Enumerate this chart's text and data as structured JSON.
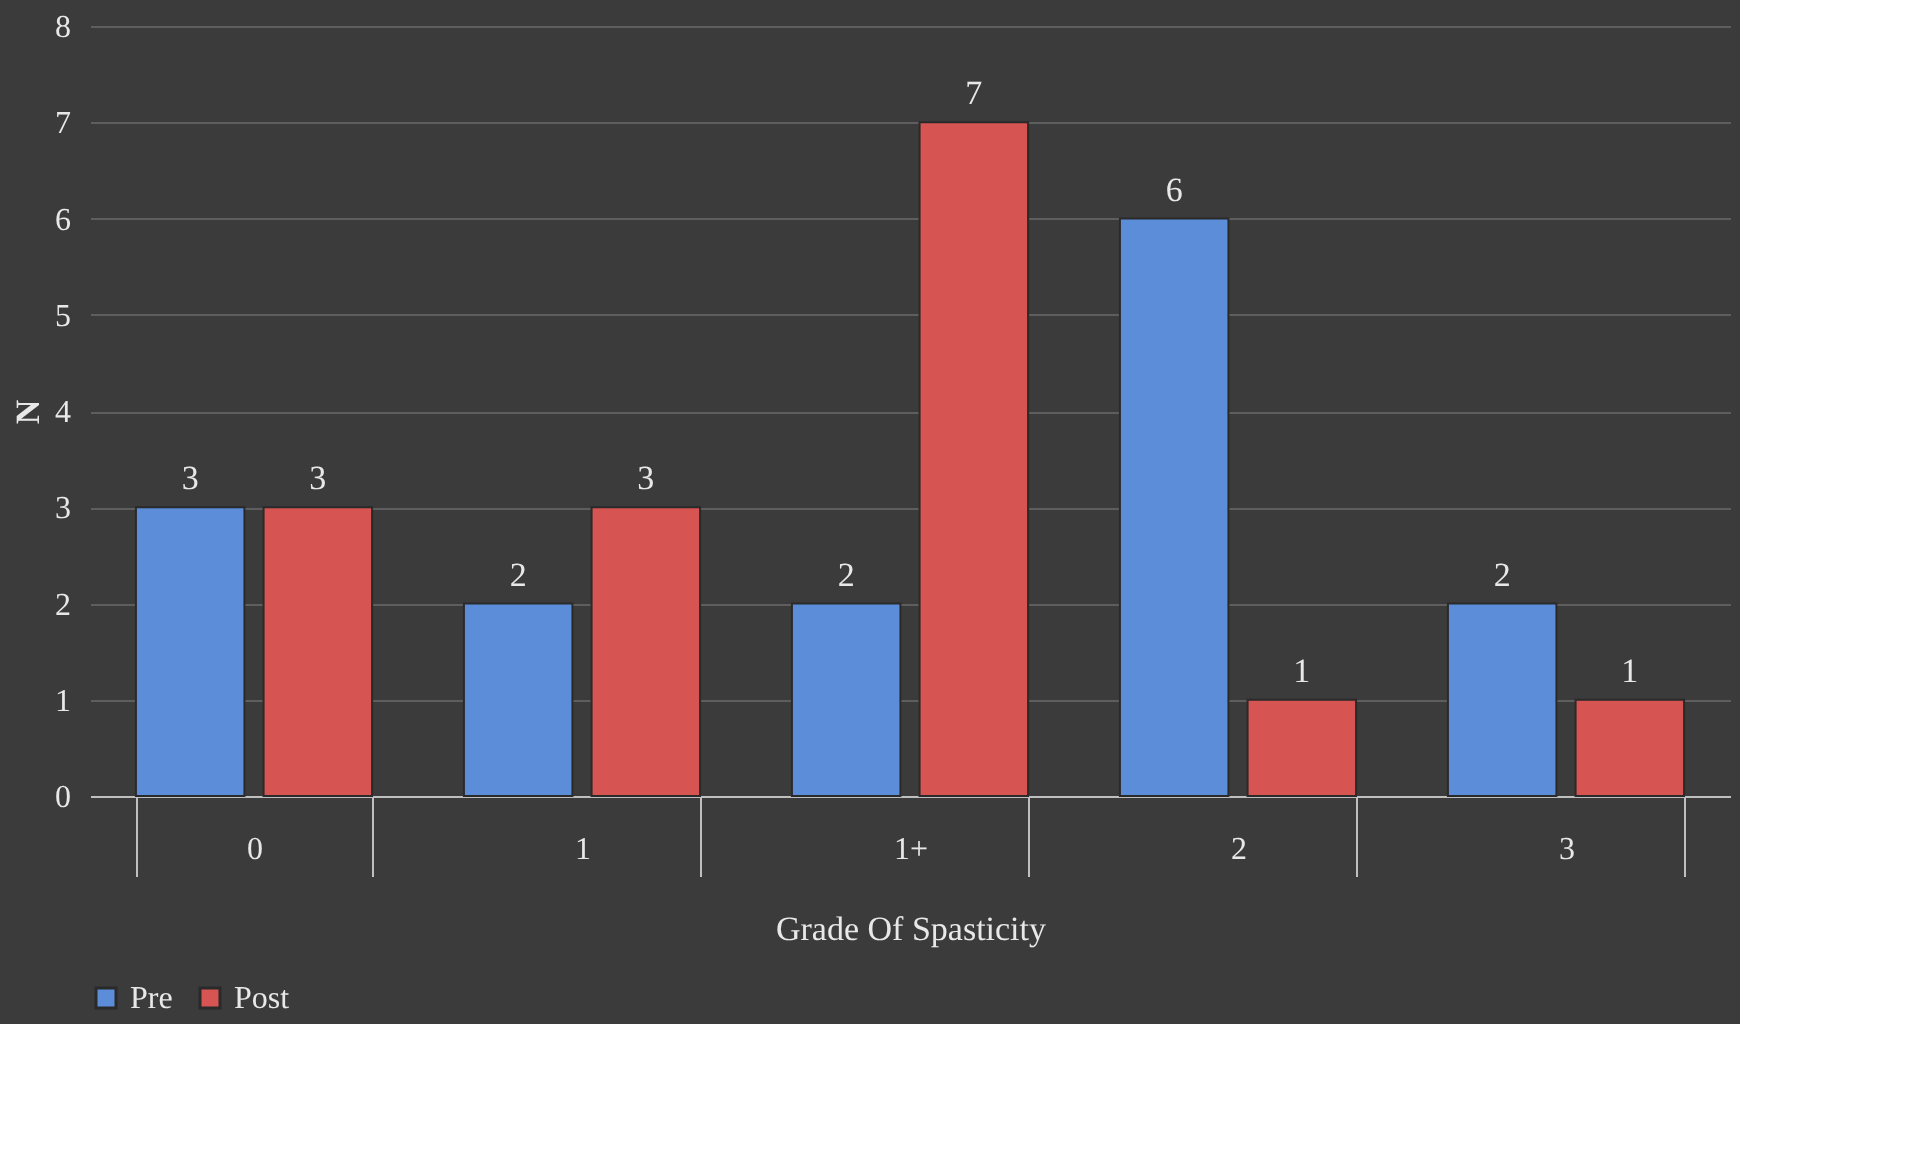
{
  "chart_data": {
    "type": "bar",
    "xlabel": "Grade Of Spasticity",
    "ylabel": "N",
    "categories": [
      "0",
      "1",
      "1+",
      "2",
      "3"
    ],
    "series": [
      {
        "name": "Pre",
        "color": "#5b8dd9",
        "values": [
          3,
          2,
          2,
          6,
          2
        ]
      },
      {
        "name": "Post",
        "color": "#d65452",
        "values": [
          3,
          3,
          7,
          1,
          1
        ]
      }
    ],
    "ylim": [
      0,
      8
    ],
    "yticks": [
      0,
      1,
      2,
      3,
      4,
      5,
      6,
      7,
      8
    ],
    "grid": "y",
    "legend": "bottom",
    "data_labels": true
  }
}
